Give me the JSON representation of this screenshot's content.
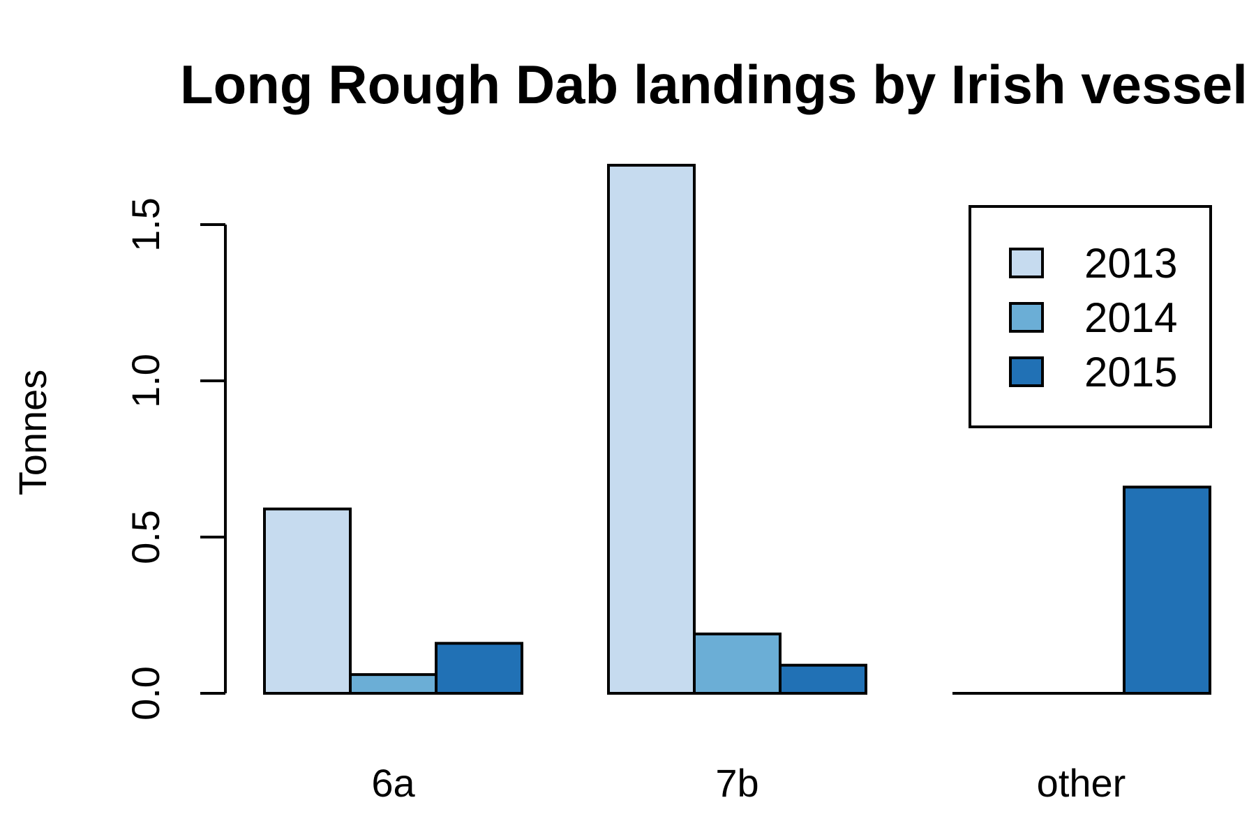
{
  "chart_data": {
    "type": "bar",
    "title": "Long Rough Dab landings by Irish vessel",
    "xlabel": "",
    "ylabel": "Tonnes",
    "categories": [
      "6a",
      "7b",
      "other"
    ],
    "series": [
      {
        "name": "2013",
        "values": [
          0.59,
          1.69,
          0.0
        ]
      },
      {
        "name": "2014",
        "values": [
          0.06,
          0.19,
          0.0
        ]
      },
      {
        "name": "2015",
        "values": [
          0.16,
          0.09,
          0.66
        ]
      }
    ],
    "colors": [
      "#c6dbef",
      "#6baed6",
      "#2171b5"
    ],
    "yticks": [
      0.0,
      0.5,
      1.0,
      1.5
    ],
    "ytick_labels": [
      "0.0",
      "0.5",
      "1.0",
      "1.5"
    ],
    "ylim": [
      0,
      1.75
    ],
    "grid": false,
    "legend": "top-right"
  }
}
